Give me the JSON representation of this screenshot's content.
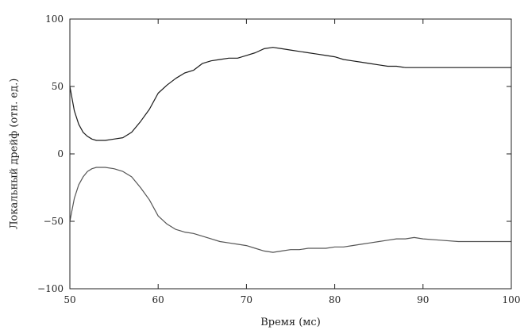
{
  "chart_data": {
    "type": "line",
    "title": "",
    "xlabel": "Время (мс)",
    "ylabel": "Локальный дрейф (отн. ед.)",
    "xlim": [
      50,
      100
    ],
    "ylim": [
      -100,
      100
    ],
    "xticks": [
      "50",
      "60",
      "70",
      "80",
      "90",
      "100"
    ],
    "yticks": [
      "100",
      "50",
      "0",
      "−50",
      "−100"
    ],
    "grid": false,
    "legend": "none",
    "series": [
      {
        "color": "#1a1a1a",
        "x": [
          50,
          50.5,
          51,
          51.5,
          52,
          52.5,
          53,
          53.5,
          54,
          55,
          56,
          57,
          58,
          59,
          60,
          61,
          62,
          63,
          64,
          65,
          66,
          67,
          68,
          69,
          70,
          71,
          72,
          73,
          74,
          75,
          76,
          77,
          78,
          79,
          80,
          81,
          82,
          83,
          84,
          85,
          86,
          87,
          88,
          89,
          90,
          92,
          94,
          96,
          98,
          100
        ],
        "y": [
          50,
          32,
          22,
          16,
          13,
          11,
          10,
          10,
          10,
          11,
          12,
          16,
          24,
          33,
          45,
          51,
          56,
          60,
          62,
          67,
          69,
          70,
          71,
          71,
          73,
          75,
          78,
          79,
          78,
          77,
          76,
          75,
          74,
          73,
          72,
          70,
          69,
          68,
          67,
          66,
          65,
          65,
          64,
          64,
          64,
          64,
          64,
          64,
          64,
          64
        ]
      },
      {
        "color": "#555555",
        "x": [
          50,
          50.5,
          51,
          51.5,
          52,
          52.5,
          53,
          53.5,
          54,
          55,
          56,
          57,
          58,
          59,
          60,
          61,
          62,
          63,
          64,
          65,
          66,
          67,
          68,
          69,
          70,
          71,
          72,
          73,
          74,
          75,
          76,
          77,
          78,
          79,
          80,
          81,
          82,
          83,
          84,
          85,
          86,
          87,
          88,
          89,
          90,
          92,
          94,
          96,
          98,
          100
        ],
        "y": [
          -50,
          -33,
          -23,
          -17,
          -13,
          -11,
          -10,
          -10,
          -10,
          -11,
          -13,
          -17,
          -25,
          -34,
          -46,
          -52,
          -56,
          -58,
          -59,
          -61,
          -63,
          -65,
          -66,
          -67,
          -68,
          -70,
          -72,
          -73,
          -72,
          -71,
          -71,
          -70,
          -70,
          -70,
          -69,
          -69,
          -68,
          -67,
          -66,
          -65,
          -64,
          -63,
          -63,
          -62,
          -63,
          -64,
          -65,
          -65,
          -65,
          -65
        ]
      }
    ]
  }
}
